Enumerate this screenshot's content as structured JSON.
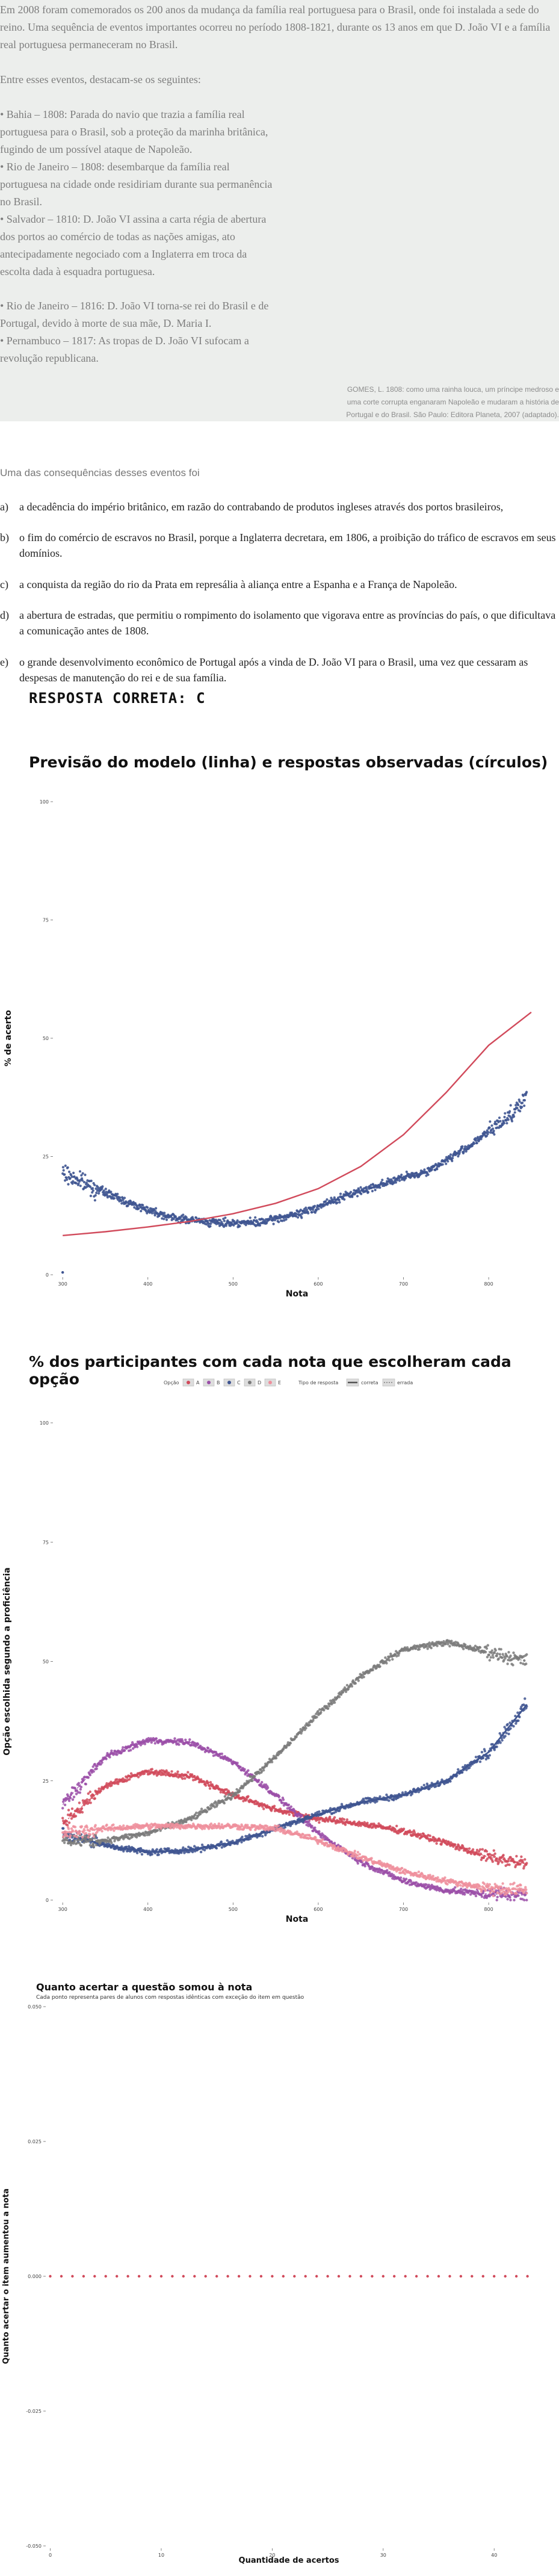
{
  "text": {
    "intro": "Em 2008 foram comemorados os 200 anos da mudança da família real portuguesa para o Brasil, onde foi instalada a sede do reino. Uma sequência de eventos importantes ocorreu no período 1808-1821, durante os 13 anos em que D. João VI e a família real portuguesa permaneceram no Brasil.",
    "lead": "Entre esses eventos, destacam-se os seguintes:",
    "bullets": [
      "• Bahia – 1808: Parada do navio que trazia a família real portuguesa para o Brasil, sob a proteção da marinha britânica, fugindo de um possível ataque de Napoleão.",
      "• Rio de Janeiro – 1808: desembarque da família real portuguesa na cidade onde residiriam durante sua permanência no Brasil.",
      "• Salvador – 1810: D. João VI assina a carta régia de abertura dos portos ao comércio de todas as nações amigas, ato antecipadamente negociado com a Inglaterra em troca da escolta dada à esquadra portuguesa.",
      "• Rio de Janeiro – 1816: D. João VI torna-se rei do Brasil e de Portugal, devido à morte de sua mãe, D. Maria I.",
      "• Pernambuco – 1817: As tropas de D. João VI sufocam a revolução republicana."
    ],
    "citation": "GOMES, L. 1808: como uma rainha louca, um príncipe medroso e uma corte corrupta enganaram Napoleão e mudaram a história de Portugal e do Brasil. São Paulo: Editora Planeta, 2007 (adaptado)."
  },
  "question": {
    "stem": "Uma das consequências desses eventos foi",
    "options": [
      {
        "letter": "a)",
        "text": "a decadência do império britânico, em razão do contrabando de produtos ingleses através dos portos brasileiros,"
      },
      {
        "letter": "b)",
        "text": "o fim do comércio de escravos no Brasil, porque a Inglaterra decretara, em 1806, a proibição do tráfico de escravos em seus domínios."
      },
      {
        "letter": "c)",
        "text": "a conquista da região do rio da Prata em represália à aliança entre a Espanha e a França de Napoleão."
      },
      {
        "letter": "d)",
        "text": "a abertura de estradas, que permitiu o rompimento do isolamento que vigorava entre as províncias do país, o que dificultava a comunicação antes de 1808."
      },
      {
        "letter": "e)",
        "text": "o grande desenvolvimento econômico de Portugal após a vinda de D. João VI para o Brasil, uma vez que cessaram as despesas de manutenção do rei e de sua família."
      }
    ],
    "correct_answer": "RESPOSTA CORRETA: C"
  },
  "chart_data": [
    {
      "type": "scatter",
      "title": "Previsão do modelo (linha) e respostas observadas (círculos)",
      "xlabel": "Nota",
      "ylabel": "% de acerto",
      "xlim": [
        290,
        855
      ],
      "ylim": [
        0,
        100
      ],
      "xticks": [
        {
          "v": 300,
          "label": "300"
        },
        {
          "v": 400,
          "label": "400"
        },
        {
          "v": 500,
          "label": "500"
        },
        {
          "v": 600,
          "label": "600"
        },
        {
          "v": 700,
          "label": "700"
        },
        {
          "v": 800,
          "label": "800"
        }
      ],
      "yticks": [
        {
          "v": 0,
          "label": "0"
        },
        {
          "v": 25,
          "label": "25"
        },
        {
          "v": 50,
          "label": "50"
        },
        {
          "v": 75,
          "label": "75"
        },
        {
          "v": 100,
          "label": "100"
        }
      ],
      "observed_anchors": [
        [
          300,
          21.5
        ],
        [
          330,
          19
        ],
        [
          380,
          15
        ],
        [
          430,
          12
        ],
        [
          480,
          11
        ],
        [
          530,
          11
        ],
        [
          580,
          13
        ],
        [
          630,
          16.5
        ],
        [
          680,
          19.5
        ],
        [
          730,
          22
        ],
        [
          780,
          27.5
        ],
        [
          820,
          33
        ],
        [
          845,
          37.5
        ]
      ],
      "model_curve": [
        [
          300,
          8.3
        ],
        [
          350,
          9.1
        ],
        [
          400,
          10.1
        ],
        [
          450,
          11.3
        ],
        [
          500,
          12.9
        ],
        [
          550,
          15.1
        ],
        [
          600,
          18.2
        ],
        [
          650,
          22.9
        ],
        [
          700,
          29.6
        ],
        [
          750,
          38.5
        ],
        [
          800,
          48.5
        ],
        [
          850,
          55.5
        ]
      ],
      "colors": {
        "observed": "#3f5591",
        "model": "#d14a5b"
      }
    },
    {
      "type": "scatter",
      "title": "% dos participantes com cada nota que escolheram cada opção",
      "xlabel": "Nota",
      "ylabel": "Opção escolhida segundo a proficiência",
      "xlim": [
        290,
        855
      ],
      "ylim": [
        0,
        100
      ],
      "xticks": [
        {
          "v": 300,
          "label": "300"
        },
        {
          "v": 400,
          "label": "400"
        },
        {
          "v": 500,
          "label": "500"
        },
        {
          "v": 600,
          "label": "600"
        },
        {
          "v": 700,
          "label": "700"
        },
        {
          "v": 800,
          "label": "800"
        }
      ],
      "yticks": [
        {
          "v": 0,
          "label": "0"
        },
        {
          "v": 25,
          "label": "25"
        },
        {
          "v": 50,
          "label": "50"
        },
        {
          "v": 75,
          "label": "75"
        },
        {
          "v": 100,
          "label": "100"
        }
      ],
      "legend": {
        "option_label": "Opção",
        "options": [
          "A",
          "B",
          "C",
          "D",
          "E"
        ],
        "type_label": "Tipo de resposta",
        "types": [
          "correta",
          "errada"
        ]
      },
      "series": [
        {
          "name": "A",
          "color": "#d14a5b",
          "points": [
            [
              300,
              16
            ],
            [
              350,
              24
            ],
            [
              400,
              27
            ],
            [
              450,
              26
            ],
            [
              500,
              22
            ],
            [
              550,
              19
            ],
            [
              600,
              17
            ],
            [
              650,
              16
            ],
            [
              700,
              14.5
            ],
            [
              750,
              12
            ],
            [
              800,
              9
            ],
            [
              845,
              7.5
            ]
          ]
        },
        {
          "name": "B",
          "color": "#9b4fa8",
          "points": [
            [
              300,
              20
            ],
            [
              350,
              30
            ],
            [
              400,
              33.5
            ],
            [
              450,
              33
            ],
            [
              500,
              29
            ],
            [
              550,
              22
            ],
            [
              600,
              14
            ],
            [
              650,
              8
            ],
            [
              700,
              4
            ],
            [
              750,
              2
            ],
            [
              800,
              1.3
            ],
            [
              845,
              1
            ]
          ]
        },
        {
          "name": "C",
          "color": "#3f5591",
          "points": [
            [
              300,
              14
            ],
            [
              350,
              11.5
            ],
            [
              400,
              10
            ],
            [
              450,
              10.5
            ],
            [
              500,
              12
            ],
            [
              550,
              15
            ],
            [
              600,
              18
            ],
            [
              650,
              20.5
            ],
            [
              700,
              22
            ],
            [
              750,
              25
            ],
            [
              800,
              31
            ],
            [
              845,
              41
            ]
          ]
        },
        {
          "name": "D",
          "color": "#7b7b7b",
          "points": [
            [
              300,
              12.5
            ],
            [
              350,
              12.5
            ],
            [
              400,
              14
            ],
            [
              450,
              17
            ],
            [
              500,
              22
            ],
            [
              550,
              30
            ],
            [
              600,
              39
            ],
            [
              650,
              47
            ],
            [
              700,
              52.5
            ],
            [
              750,
              54
            ],
            [
              800,
              52
            ],
            [
              845,
              50
            ]
          ]
        },
        {
          "name": "E",
          "color": "#ef8f9c",
          "points": [
            [
              300,
              14
            ],
            [
              350,
              15
            ],
            [
              400,
              15.5
            ],
            [
              450,
              15.5
            ],
            [
              500,
              15.5
            ],
            [
              550,
              15
            ],
            [
              600,
              12.5
            ],
            [
              650,
              9
            ],
            [
              700,
              6
            ],
            [
              750,
              4
            ],
            [
              800,
              2.5
            ],
            [
              845,
              2
            ]
          ]
        }
      ]
    },
    {
      "type": "scatter",
      "title": "Quanto acertar a questão somou à nota",
      "subtitle": "Cada ponto representa pares de alunos com respostas idênticas com exceção do item em questão",
      "xlabel": "Quantidade de acertos",
      "ylabel": "Quanto acertar o item aumentou a nota",
      "xlim": [
        -0.3,
        44
      ],
      "ylim": [
        -0.05,
        0.05
      ],
      "xticks": [
        {
          "v": 0,
          "label": "0"
        },
        {
          "v": 10,
          "label": "10"
        },
        {
          "v": 20,
          "label": "20"
        },
        {
          "v": 30,
          "label": "30"
        },
        {
          "v": 40,
          "label": "40"
        }
      ],
      "yticks": [
        {
          "v": -0.05,
          "label": "-0.050"
        },
        {
          "v": -0.025,
          "label": "-0.025"
        },
        {
          "v": 0,
          "label": "0.000"
        },
        {
          "v": 0.025,
          "label": "0.025"
        },
        {
          "v": 0.05,
          "label": "0.050"
        }
      ],
      "x": [
        0,
        1,
        2,
        3,
        4,
        5,
        6,
        7,
        8,
        9,
        10,
        11,
        12,
        13,
        14,
        15,
        16,
        17,
        18,
        19,
        20,
        21,
        22,
        23,
        24,
        25,
        26,
        27,
        28,
        29,
        30,
        31,
        32,
        33,
        34,
        35,
        36,
        37,
        38,
        39,
        40,
        41,
        42,
        43
      ],
      "y": [
        0,
        0,
        0,
        0,
        0,
        0,
        0,
        0,
        0,
        0,
        0,
        0,
        0,
        0,
        0,
        0,
        0,
        0,
        0,
        0,
        0,
        0,
        0,
        0,
        0,
        0,
        0,
        0,
        0,
        0,
        0,
        0,
        0,
        0,
        0,
        0,
        0,
        0,
        0,
        0,
        0,
        0,
        0,
        0
      ],
      "color": "#d14a5b"
    }
  ]
}
